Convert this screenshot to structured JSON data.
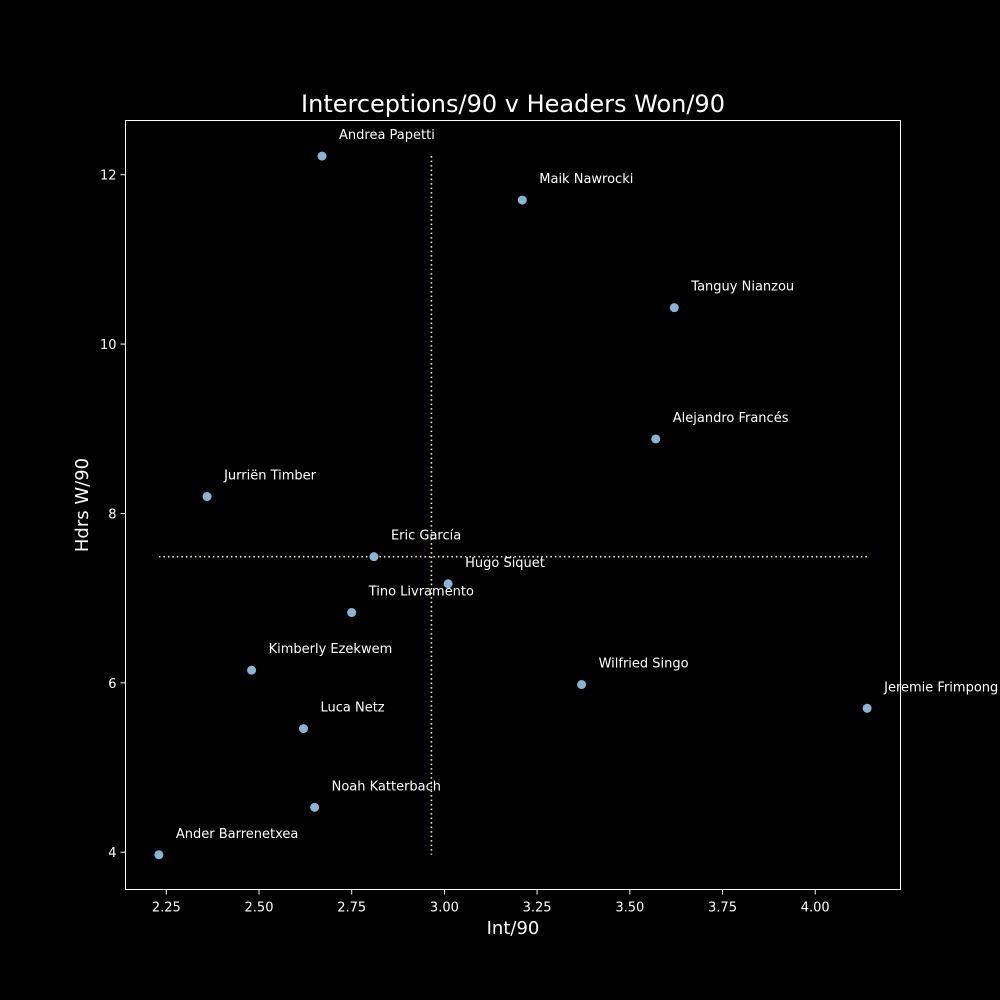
{
  "chart_data": {
    "type": "scatter",
    "title": "Interceptions/90 v Headers Won/90",
    "xlabel": "Int/90",
    "ylabel": "Hdrs W/90",
    "xlim": [
      2.14,
      4.23
    ],
    "ylim": [
      3.56,
      12.64
    ],
    "x_ticks": [
      2.25,
      2.5,
      2.75,
      3.0,
      3.25,
      3.5,
      3.75,
      4.0
    ],
    "x_tick_labels": [
      "2.25",
      "2.50",
      "2.75",
      "3.00",
      "3.25",
      "3.50",
      "3.75",
      "4.00"
    ],
    "y_ticks": [
      4,
      6,
      8,
      10,
      12
    ],
    "y_tick_labels": [
      "4",
      "6",
      "8",
      "10",
      "12"
    ],
    "grid": false,
    "marker_color": "#8ab4d6",
    "reference_line_color": "#fffcd0",
    "reference_lines": {
      "vertical_x": 2.965,
      "horizontal_y": 7.49
    },
    "points": [
      {
        "label": "Andrea Papetti",
        "x": 2.67,
        "y": 12.22
      },
      {
        "label": "Maik Nawrocki",
        "x": 3.21,
        "y": 11.7
      },
      {
        "label": "Tanguy Nianzou",
        "x": 3.62,
        "y": 10.43
      },
      {
        "label": "Alejandro Francés",
        "x": 3.57,
        "y": 8.88
      },
      {
        "label": "Jurriën Timber",
        "x": 2.36,
        "y": 8.2
      },
      {
        "label": "Eric García",
        "x": 2.81,
        "y": 7.49
      },
      {
        "label": "Hugo Siquet",
        "x": 3.01,
        "y": 7.17
      },
      {
        "label": "Tino Livramento",
        "x": 2.75,
        "y": 6.83
      },
      {
        "label": "Kimberly Ezekwem",
        "x": 2.48,
        "y": 6.15
      },
      {
        "label": "Wilfried Singo",
        "x": 3.37,
        "y": 5.98
      },
      {
        "label": "Jeremie Frimpong",
        "x": 4.14,
        "y": 5.7
      },
      {
        "label": "Luca Netz",
        "x": 2.62,
        "y": 5.46
      },
      {
        "label": "Noah Katterbach",
        "x": 2.65,
        "y": 4.53
      },
      {
        "label": "Ander Barrenetxea",
        "x": 2.23,
        "y": 3.97
      }
    ]
  }
}
